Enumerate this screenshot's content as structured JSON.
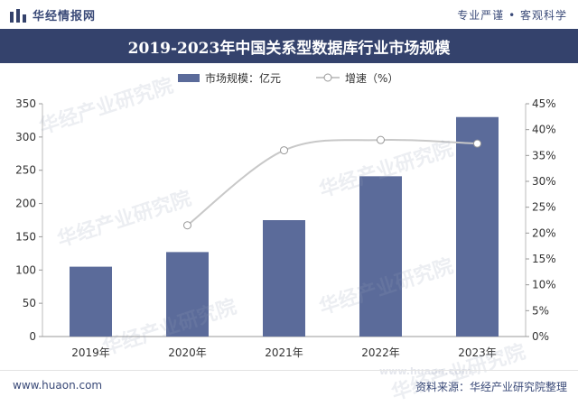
{
  "header": {
    "brand": "华经情报网",
    "slogan": "专业严谨 • 客观科学"
  },
  "colors": {
    "title_bg": "#34426c",
    "bar": "#5b6b9a",
    "line": "#c8c8c8",
    "marker_fill": "#ffffff"
  },
  "watermarks": [
    "华经产业研究院",
    "华经产业研究院",
    "华经产业研究院",
    "华经产业研究院",
    "华经产业研究院",
    "华经产业研究院",
    "www.huaon.com"
  ],
  "chart_data": {
    "type": "bar",
    "title": "2019-2023年中国关系型数据库行业市场规模",
    "categories": [
      "2019年",
      "2020年",
      "2021年",
      "2022年",
      "2023年"
    ],
    "series": [
      {
        "name": "市场规模：亿元",
        "type": "bar",
        "axis": "left",
        "values": [
          105,
          127,
          175,
          241,
          330
        ]
      },
      {
        "name": "增速（%）",
        "type": "line",
        "axis": "right",
        "values": [
          null,
          21.5,
          36.0,
          38.0,
          37.3
        ]
      }
    ],
    "y_left": {
      "min": 0,
      "max": 350,
      "ticks": [
        "0",
        "50",
        "100",
        "150",
        "200",
        "250",
        "300",
        "350"
      ]
    },
    "y_right": {
      "min": 0,
      "max": 45,
      "ticks": [
        "0%",
        "5%",
        "10%",
        "15%",
        "20%",
        "25%",
        "30%",
        "35%",
        "40%",
        "45%"
      ]
    },
    "legend_position": "top-center",
    "grid": false
  },
  "footer": {
    "site": "www.huaon.com",
    "source": "资料来源：华经产业研究院整理"
  }
}
